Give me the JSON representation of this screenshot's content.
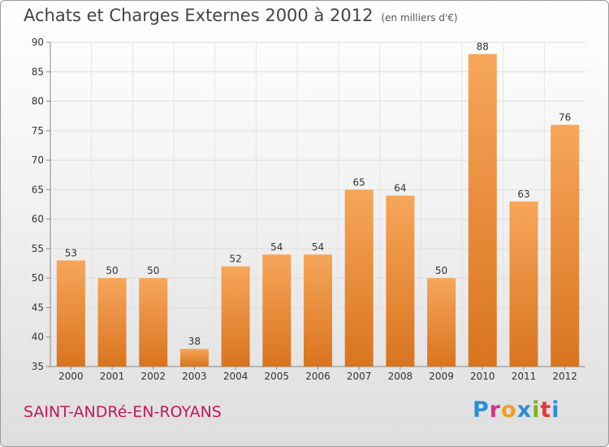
{
  "header": {
    "title": "Achats et Charges Externes 2000 à 2012",
    "subtitle": "(en milliers d'€)"
  },
  "footer": {
    "commune": "SAINT-ANDRé-EN-ROYANS",
    "logo_text": "Proxiti",
    "logo_colors": [
      "#2a8fd6",
      "#d6338a",
      "#f0a020",
      "#2a8fd6",
      "#7ab51d",
      "#e53935",
      "#2a8fd6"
    ]
  },
  "chart_data": {
    "type": "bar",
    "categories": [
      "2000",
      "2001",
      "2002",
      "2003",
      "2004",
      "2005",
      "2006",
      "2007",
      "2008",
      "2009",
      "2010",
      "2011",
      "2012"
    ],
    "values": [
      53,
      50,
      50,
      38,
      52,
      54,
      54,
      65,
      64,
      50,
      88,
      63,
      76
    ],
    "value_labels": [
      "53",
      "50",
      "50",
      "38",
      "52",
      "54",
      "54",
      "65",
      "64",
      "50",
      "88",
      "63",
      "76"
    ],
    "ylim": [
      35,
      90
    ],
    "yticks": [
      35,
      40,
      45,
      50,
      55,
      60,
      65,
      70,
      75,
      80,
      85,
      90
    ],
    "ytick_labels": [
      "35",
      "40",
      "45",
      "50",
      "55",
      "60",
      "65",
      "70",
      "75",
      "80",
      "85",
      "90"
    ],
    "grid": true,
    "bar_color_top": "#f7a65a",
    "bar_color_bottom": "#d9741f"
  }
}
